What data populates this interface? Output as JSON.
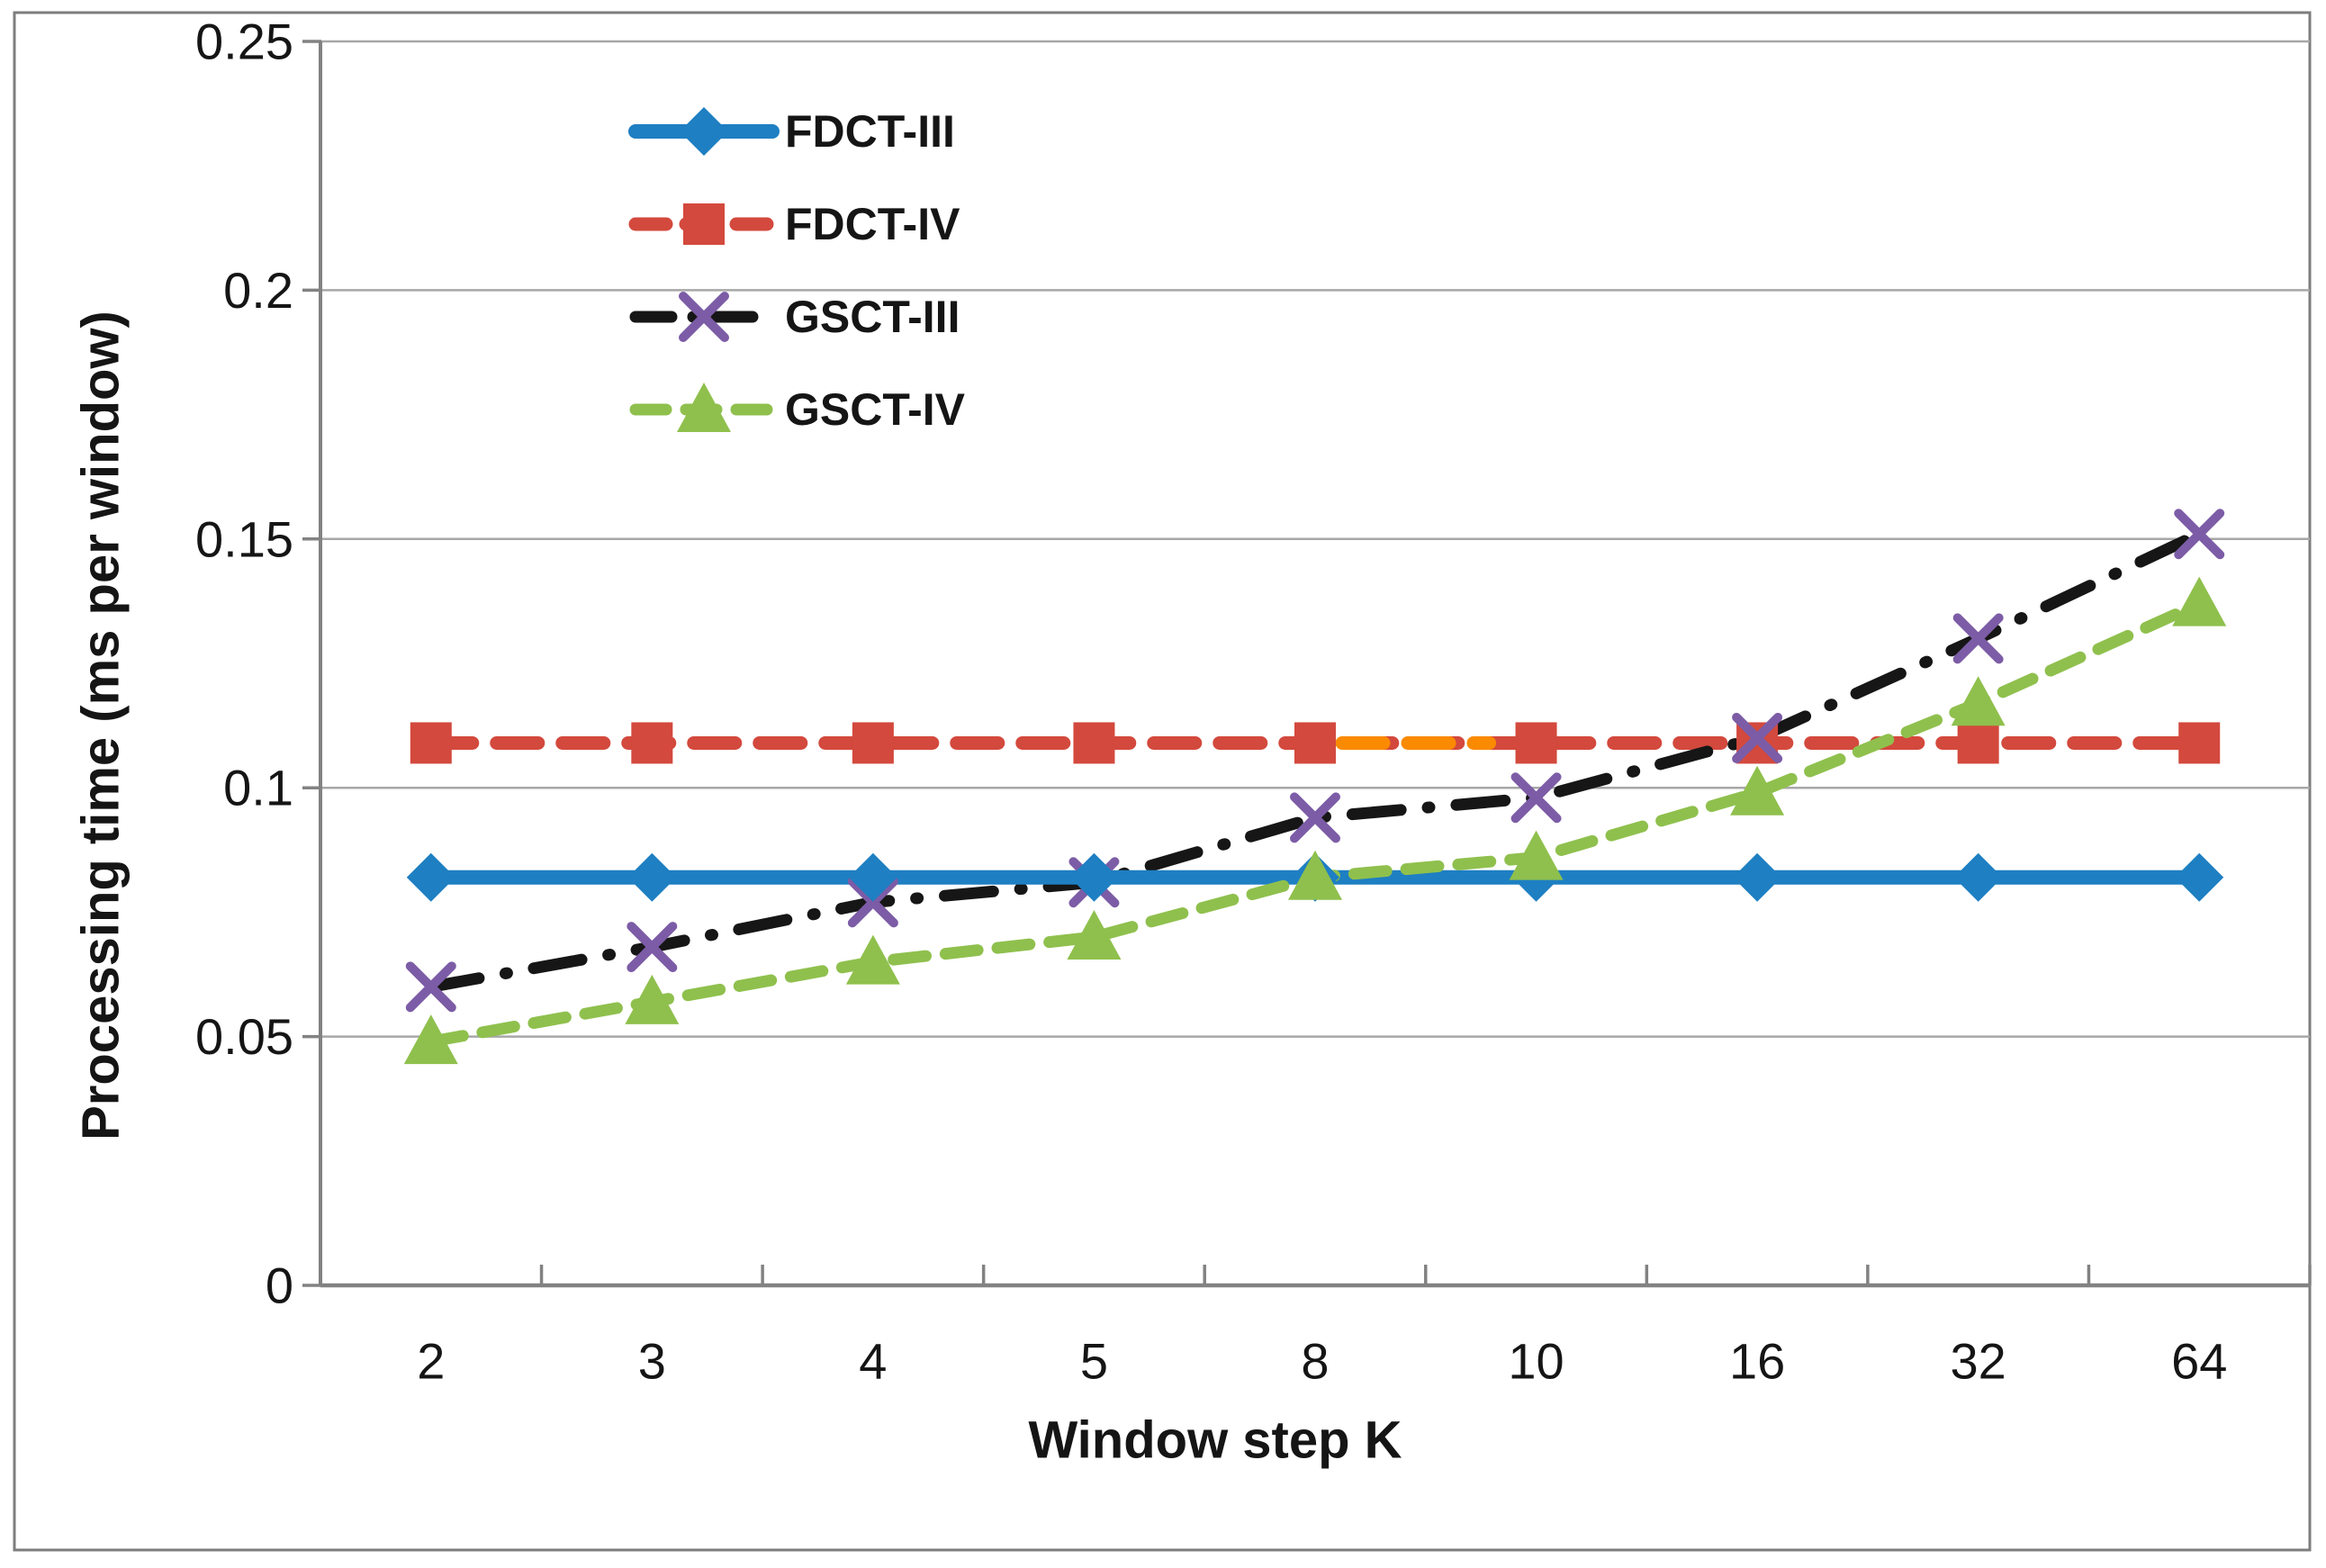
{
  "chart_data": {
    "type": "line",
    "title": "",
    "xlabel": "Window step K",
    "ylabel": "Processing time (ms per window)",
    "categories": [
      2,
      3,
      4,
      5,
      8,
      10,
      16,
      32,
      64
    ],
    "x_tick_labels": [
      "2",
      "3",
      "4",
      "5",
      "8",
      "10",
      "16",
      "32",
      "64"
    ],
    "y_ticks": [
      0,
      0.05,
      0.1,
      0.15,
      0.2,
      0.25
    ],
    "y_tick_labels": [
      "0",
      "0.05",
      "0.1",
      "0.15",
      "0.2",
      "0.25"
    ],
    "ylim": [
      0,
      0.25
    ],
    "grid": "horizontal",
    "legend_position": "inside-upper-left",
    "series": [
      {
        "name": "FDCT-III",
        "color": "#1E7FC2",
        "line_style": "solid",
        "line_width": 16,
        "marker": "diamond",
        "marker_color": "#1E7FC2",
        "values": [
          0.082,
          0.082,
          0.082,
          0.082,
          0.082,
          0.082,
          0.082,
          0.082,
          0.082
        ]
      },
      {
        "name": "FDCT-IV",
        "color": "#D3493D",
        "line_style": "dashed",
        "line_width": 15,
        "marker": "square",
        "marker_color": "#D3493D",
        "values": [
          0.109,
          0.109,
          0.109,
          0.109,
          0.109,
          0.109,
          0.109,
          0.109,
          0.109
        ],
        "anomaly_segment": {
          "between_categories": [
            8,
            10
          ],
          "color": "#FA8A00"
        }
      },
      {
        "name": "GSCT-III",
        "color": "#161616",
        "line_style": "dash-dot",
        "line_width": 13,
        "marker": "x",
        "marker_color": "#7C5CA6",
        "values": [
          0.06,
          0.068,
          0.077,
          0.081,
          0.094,
          0.098,
          0.11,
          0.13,
          0.151
        ]
      },
      {
        "name": "GSCT-IV",
        "color": "#8FC04D",
        "line_style": "dashed-short",
        "line_width": 13,
        "marker": "triangle-up",
        "marker_color": "#8FC04D",
        "values": [
          0.049,
          0.057,
          0.065,
          0.07,
          0.082,
          0.086,
          0.099,
          0.117,
          0.137
        ]
      }
    ]
  },
  "styles": {
    "grid_color": "#A7A7A7",
    "axis_color": "#828282",
    "border_color": "#7D7D7D",
    "text_color": "#151515",
    "background": "#FFFFFF"
  }
}
